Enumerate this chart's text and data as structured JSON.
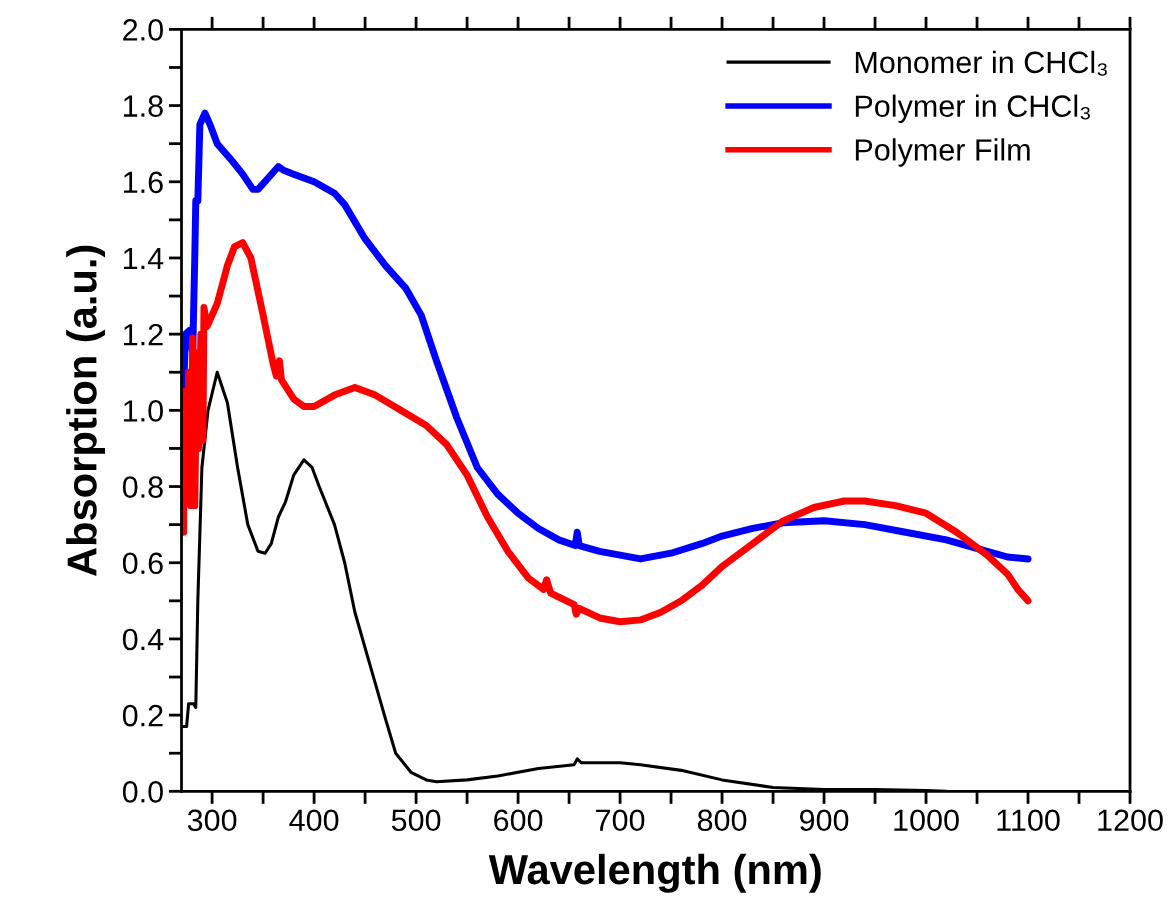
{
  "chart_data": {
    "type": "line",
    "xlabel": "Wavelength (nm)",
    "ylabel": "Absorption (a.u.)",
    "xlim": [
      270,
      1200
    ],
    "ylim": [
      0,
      2.0
    ],
    "xticks": [
      300,
      {
        "value": 350,
        "label": null
      },
      400,
      {
        "value": 450,
        "label": null
      },
      500,
      {
        "value": 550,
        "label": null
      },
      600,
      {
        "value": 650,
        "label": null
      },
      700,
      {
        "value": 750,
        "label": null
      },
      800,
      {
        "value": 850,
        "label": null
      },
      900,
      {
        "value": 950,
        "label": null
      },
      1000,
      {
        "value": 1050,
        "label": null
      },
      1100,
      {
        "value": 1150,
        "label": null
      },
      1200
    ],
    "yticks": [
      {
        "value": 0,
        "label": "0.0"
      },
      {
        "value": 0.1,
        "label": null
      },
      {
        "value": 0.2,
        "label": "0.2"
      },
      {
        "value": 0.3,
        "label": null
      },
      {
        "value": 0.4,
        "label": "0.4"
      },
      {
        "value": 0.5,
        "label": null
      },
      {
        "value": 0.6,
        "label": "0.6"
      },
      {
        "value": 0.7,
        "label": null
      },
      {
        "value": 0.8,
        "label": "0.8"
      },
      {
        "value": 0.9,
        "label": null
      },
      {
        "value": 1.0,
        "label": "1.0"
      },
      {
        "value": 1.1,
        "label": null
      },
      {
        "value": 1.2,
        "label": "1.2"
      },
      {
        "value": 1.3,
        "label": null
      },
      {
        "value": 1.4,
        "label": "1.4"
      },
      {
        "value": 1.5,
        "label": null
      },
      {
        "value": 1.6,
        "label": "1.6"
      },
      {
        "value": 1.7,
        "label": null
      },
      {
        "value": 1.8,
        "label": "1.8"
      },
      {
        "value": 1.9,
        "label": null
      },
      {
        "value": 2.0,
        "label": "2.0"
      }
    ],
    "grid": false,
    "legend": "top right",
    "marker": "none",
    "line_style": "solid",
    "series": [
      {
        "name": "Monomer in CHCl₃",
        "color": "#000000",
        "x": [
          272,
          275,
          277,
          282,
          284,
          286,
          290,
          296,
          305,
          315,
          325,
          335,
          345,
          352,
          358,
          365,
          372,
          380,
          390,
          398,
          405,
          420,
          430,
          440,
          455,
          470,
          480,
          495,
          510,
          520,
          550,
          580,
          620,
          655,
          658,
          662,
          700,
          720,
          760,
          800,
          850,
          900,
          950,
          1000,
          1020
        ],
        "values": [
          0.17,
          0.17,
          0.23,
          0.23,
          0.22,
          0.5,
          0.85,
          1.0,
          1.1,
          1.02,
          0.85,
          0.7,
          0.63,
          0.625,
          0.65,
          0.72,
          0.76,
          0.83,
          0.87,
          0.85,
          0.8,
          0.7,
          0.6,
          0.47,
          0.33,
          0.19,
          0.1,
          0.05,
          0.03,
          0.025,
          0.03,
          0.04,
          0.06,
          0.07,
          0.085,
          0.075,
          0.075,
          0.07,
          0.055,
          0.03,
          0.01,
          0.005,
          0.005,
          0.002,
          0.0
        ]
      },
      {
        "name": "Polymer in CHCl₃",
        "color": "#0000ff",
        "x": [
          272,
          274,
          278,
          281,
          283,
          284,
          286,
          288,
          293,
          298,
          305,
          318,
          330,
          340,
          345,
          355,
          365,
          370,
          380,
          400,
          420,
          430,
          450,
          470,
          490,
          505,
          520,
          540,
          560,
          580,
          600,
          620,
          640,
          656,
          658,
          660,
          680,
          700,
          720,
          750,
          780,
          800,
          830,
          860,
          900,
          940,
          980,
          1020,
          1060,
          1080,
          1100
        ],
        "values": [
          1.05,
          1.2,
          1.21,
          1.15,
          1.4,
          1.55,
          1.55,
          1.75,
          1.78,
          1.75,
          1.7,
          1.66,
          1.62,
          1.58,
          1.58,
          1.61,
          1.64,
          1.63,
          1.62,
          1.6,
          1.57,
          1.54,
          1.45,
          1.38,
          1.32,
          1.25,
          1.13,
          0.98,
          0.85,
          0.78,
          0.73,
          0.69,
          0.66,
          0.645,
          0.68,
          0.645,
          0.63,
          0.62,
          0.61,
          0.625,
          0.65,
          0.67,
          0.69,
          0.705,
          0.71,
          0.7,
          0.68,
          0.66,
          0.63,
          0.615,
          0.61
        ]
      },
      {
        "name": "Polymer Film",
        "color": "#ff0000",
        "x": [
          272,
          273,
          275,
          277,
          279,
          281,
          283,
          285,
          287,
          289,
          291,
          292,
          295,
          300,
          305,
          315,
          322,
          330,
          338,
          350,
          360,
          363,
          366,
          368,
          380,
          390,
          400,
          420,
          440,
          460,
          485,
          510,
          530,
          550,
          570,
          590,
          610,
          625,
          628,
          632,
          655,
          657,
          660,
          680,
          700,
          720,
          740,
          760,
          780,
          800,
          830,
          860,
          890,
          920,
          940,
          970,
          1000,
          1030,
          1060,
          1080,
          1090,
          1100
        ],
        "values": [
          0.68,
          1.05,
          0.8,
          1.1,
          0.75,
          1.19,
          0.75,
          1.15,
          0.9,
          1.2,
          0.92,
          1.27,
          1.22,
          1.25,
          1.28,
          1.38,
          1.43,
          1.44,
          1.4,
          1.25,
          1.12,
          1.09,
          1.13,
          1.08,
          1.03,
          1.01,
          1.01,
          1.04,
          1.06,
          1.04,
          1.0,
          0.96,
          0.91,
          0.83,
          0.72,
          0.63,
          0.56,
          0.53,
          0.555,
          0.52,
          0.49,
          0.465,
          0.48,
          0.455,
          0.445,
          0.45,
          0.47,
          0.5,
          0.54,
          0.59,
          0.65,
          0.71,
          0.745,
          0.762,
          0.762,
          0.75,
          0.73,
          0.68,
          0.62,
          0.57,
          0.53,
          0.5
        ]
      }
    ]
  }
}
